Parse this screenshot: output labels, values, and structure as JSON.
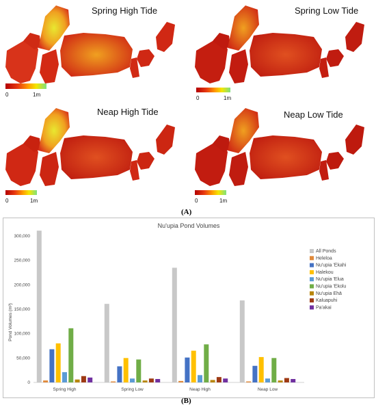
{
  "panel_a": {
    "label": "(A)",
    "scale": {
      "min_label": "0",
      "max_label": "1m"
    },
    "maps": [
      {
        "title": "Spring High Tide"
      },
      {
        "title": "Spring Low Tide"
      },
      {
        "title": "Neap High Tide"
      },
      {
        "title": "Neap Low Tide"
      }
    ]
  },
  "panel_b": {
    "label": "(B)"
  },
  "colors": {
    "All Ponds": "#c8c8c8",
    "Heleloa": "#e0893a",
    "Nu'upia 'Ekahi": "#4472c4",
    "Halekou": "#ffc000",
    "Nu'upia 'Elua": "#5b9bd5",
    "Nu'upia 'Ekolu": "#70ad47",
    "Nu'upia Ehā": "#b8860b",
    "Kaluapuhi": "#9e3a14",
    "Pa'akai": "#7030a0"
  },
  "chart_data": {
    "type": "bar",
    "title": "Nu'upia Pond Volumes",
    "ylabel": "Pond Volumes (m³)",
    "xlabel": "",
    "ylim": [
      0,
      300000
    ],
    "yticks": [
      "0",
      "50,000",
      "100,000",
      "150,000",
      "200,000",
      "250,000",
      "300,000"
    ],
    "ytick_values": [
      0,
      50000,
      100000,
      150000,
      200000,
      250000,
      300000
    ],
    "legend_position": "right",
    "categories": [
      "Spring High",
      "Spring Low",
      "Neap High",
      "Neap Low"
    ],
    "series": [
      {
        "name": "All Ponds",
        "values": [
          311000,
          161000,
          235000,
          168000
        ]
      },
      {
        "name": "Heleloa",
        "values": [
          4000,
          2000,
          3000,
          2000
        ]
      },
      {
        "name": "Nu'upia 'Ekahi",
        "values": [
          68000,
          33000,
          51000,
          34000
        ]
      },
      {
        "name": "Halekou",
        "values": [
          80000,
          50000,
          65000,
          52000
        ]
      },
      {
        "name": "Nu'upia 'Elua",
        "values": [
          21000,
          8000,
          15000,
          8000
        ]
      },
      {
        "name": "Nu'upia 'Ekolu",
        "values": [
          111000,
          47000,
          78000,
          50000
        ]
      },
      {
        "name": "Nu'upia Ehā",
        "values": [
          6000,
          4000,
          5000,
          4000
        ]
      },
      {
        "name": "Kaluapuhi",
        "values": [
          13000,
          8000,
          11000,
          9000
        ]
      },
      {
        "name": "Pa'akai",
        "values": [
          10000,
          7000,
          8000,
          7000
        ]
      }
    ]
  }
}
